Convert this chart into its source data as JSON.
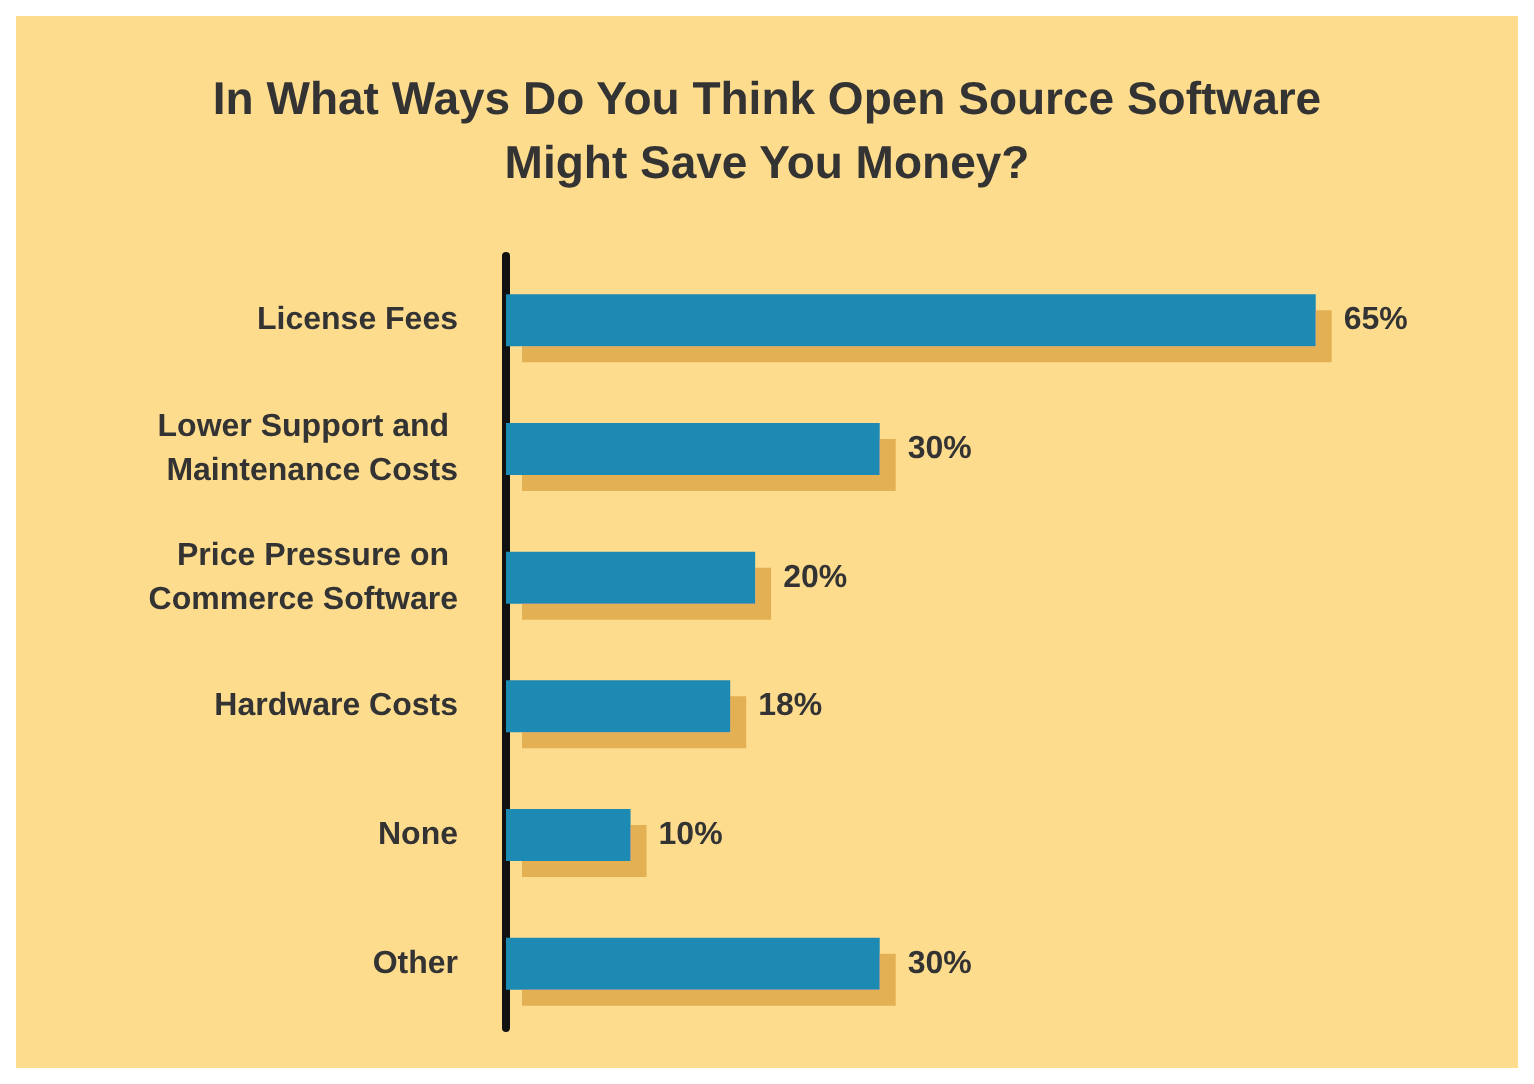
{
  "chart_data": {
    "type": "bar",
    "orientation": "horizontal",
    "title": "In What Ways Do You Think Open Source Software\nMight Save You Money?",
    "categories": [
      "License Fees",
      "Lower Support and Maintenance Costs",
      "Price Pressure on Commerce Software",
      "Hardware Costs",
      "None",
      "Other"
    ],
    "values": [
      65,
      30,
      20,
      18,
      10,
      30
    ],
    "value_labels": [
      "65%",
      "30%",
      "20%",
      "18%",
      "10%",
      "30%"
    ],
    "color": "#1b8ab3"
  }
}
